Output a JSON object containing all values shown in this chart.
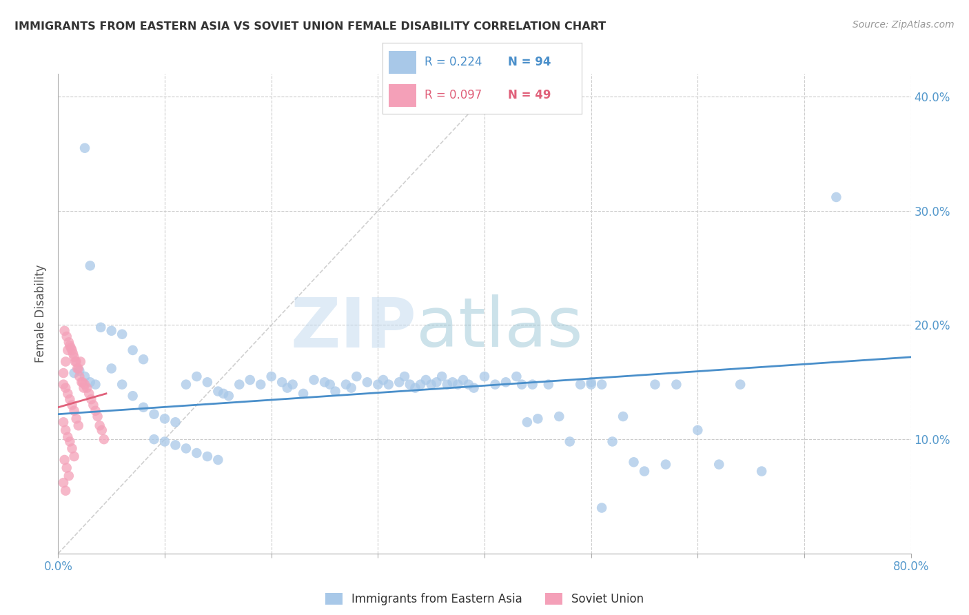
{
  "title": "IMMIGRANTS FROM EASTERN ASIA VS SOVIET UNION FEMALE DISABILITY CORRELATION CHART",
  "source": "Source: ZipAtlas.com",
  "ylabel": "Female Disability",
  "xlim": [
    0.0,
    0.8
  ],
  "ylim": [
    0.0,
    0.42
  ],
  "x_ticks": [
    0.0,
    0.1,
    0.2,
    0.3,
    0.4,
    0.5,
    0.6,
    0.7,
    0.8
  ],
  "y_ticks": [
    0.0,
    0.1,
    0.2,
    0.3,
    0.4
  ],
  "y_tick_labels_right": [
    "",
    "10.0%",
    "20.0%",
    "30.0%",
    "40.0%"
  ],
  "color_eastern_asia": "#a8c8e8",
  "color_soviet_union": "#f4a0b8",
  "color_line_eastern_asia": "#4a8fca",
  "color_line_soviet_union": "#e0607a",
  "legend_r1": "R = 0.224",
  "legend_n1": "N = 94",
  "legend_r2": "R = 0.097",
  "legend_n2": "N = 49",
  "watermark_zip": "ZIP",
  "watermark_atlas": "atlas",
  "line_ea_x0": 0.0,
  "line_ea_y0": 0.122,
  "line_ea_x1": 0.8,
  "line_ea_y1": 0.172,
  "line_su_x0": 0.0,
  "line_su_y0": 0.128,
  "line_su_x1": 0.045,
  "line_su_y1": 0.14,
  "eastern_asia_x": [
    0.02,
    0.025,
    0.03,
    0.015,
    0.035,
    0.05,
    0.06,
    0.07,
    0.08,
    0.09,
    0.1,
    0.11,
    0.12,
    0.13,
    0.14,
    0.15,
    0.155,
    0.16,
    0.17,
    0.18,
    0.19,
    0.2,
    0.21,
    0.215,
    0.22,
    0.23,
    0.24,
    0.25,
    0.255,
    0.26,
    0.27,
    0.275,
    0.28,
    0.29,
    0.3,
    0.305,
    0.31,
    0.32,
    0.325,
    0.33,
    0.335,
    0.34,
    0.345,
    0.35,
    0.355,
    0.36,
    0.365,
    0.37,
    0.375,
    0.38,
    0.385,
    0.39,
    0.4,
    0.41,
    0.42,
    0.43,
    0.435,
    0.44,
    0.445,
    0.45,
    0.46,
    0.47,
    0.48,
    0.49,
    0.5,
    0.51,
    0.52,
    0.53,
    0.54,
    0.55,
    0.56,
    0.57,
    0.58,
    0.6,
    0.62,
    0.64,
    0.66,
    0.73,
    0.025,
    0.03,
    0.04,
    0.05,
    0.06,
    0.07,
    0.08,
    0.09,
    0.1,
    0.11,
    0.12,
    0.13,
    0.14,
    0.15,
    0.5,
    0.51
  ],
  "eastern_asia_y": [
    0.16,
    0.155,
    0.15,
    0.158,
    0.148,
    0.162,
    0.148,
    0.138,
    0.128,
    0.122,
    0.118,
    0.115,
    0.148,
    0.155,
    0.15,
    0.142,
    0.14,
    0.138,
    0.148,
    0.152,
    0.148,
    0.155,
    0.15,
    0.145,
    0.148,
    0.14,
    0.152,
    0.15,
    0.148,
    0.142,
    0.148,
    0.145,
    0.155,
    0.15,
    0.148,
    0.152,
    0.148,
    0.15,
    0.155,
    0.148,
    0.145,
    0.148,
    0.152,
    0.148,
    0.15,
    0.155,
    0.148,
    0.15,
    0.148,
    0.152,
    0.148,
    0.145,
    0.155,
    0.148,
    0.15,
    0.155,
    0.148,
    0.115,
    0.148,
    0.118,
    0.148,
    0.12,
    0.098,
    0.148,
    0.15,
    0.148,
    0.098,
    0.12,
    0.08,
    0.072,
    0.148,
    0.078,
    0.148,
    0.108,
    0.078,
    0.148,
    0.072,
    0.312,
    0.355,
    0.252,
    0.198,
    0.195,
    0.192,
    0.178,
    0.17,
    0.1,
    0.098,
    0.095,
    0.092,
    0.088,
    0.085,
    0.082,
    0.148,
    0.04
  ],
  "soviet_union_x": [
    0.005,
    0.007,
    0.009,
    0.011,
    0.013,
    0.015,
    0.017,
    0.019,
    0.021,
    0.023,
    0.025,
    0.027,
    0.029,
    0.031,
    0.033,
    0.035,
    0.037,
    0.039,
    0.041,
    0.043,
    0.006,
    0.008,
    0.01,
    0.012,
    0.014,
    0.016,
    0.018,
    0.02,
    0.022,
    0.024,
    0.005,
    0.007,
    0.009,
    0.011,
    0.013,
    0.015,
    0.017,
    0.019,
    0.005,
    0.007,
    0.009,
    0.011,
    0.013,
    0.015,
    0.006,
    0.008,
    0.01,
    0.005,
    0.007
  ],
  "soviet_union_y": [
    0.158,
    0.168,
    0.178,
    0.182,
    0.178,
    0.172,
    0.168,
    0.162,
    0.168,
    0.15,
    0.148,
    0.145,
    0.14,
    0.135,
    0.13,
    0.125,
    0.12,
    0.112,
    0.108,
    0.1,
    0.195,
    0.19,
    0.185,
    0.18,
    0.175,
    0.168,
    0.162,
    0.155,
    0.15,
    0.145,
    0.148,
    0.145,
    0.14,
    0.135,
    0.13,
    0.125,
    0.118,
    0.112,
    0.115,
    0.108,
    0.102,
    0.098,
    0.092,
    0.085,
    0.082,
    0.075,
    0.068,
    0.062,
    0.055
  ]
}
